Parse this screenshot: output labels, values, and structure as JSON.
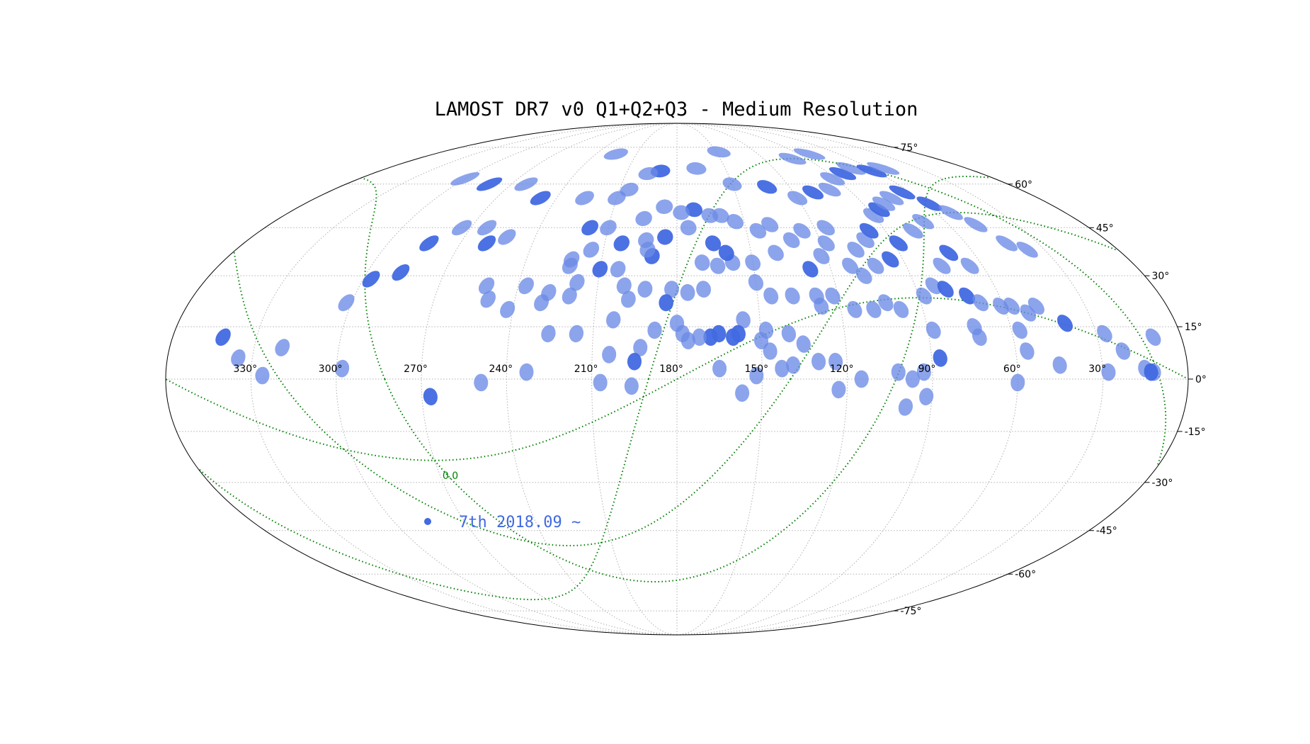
{
  "chart_data": {
    "type": "scatter",
    "projection": "mollweide",
    "title": "LAMOST DR7 v0 Q1+Q2+Q3 - Medium Resolution",
    "longitude_axis": {
      "direction": "decreasing-left-to-right",
      "ticks": [
        "330°",
        "300°",
        "270°",
        "240°",
        "210°",
        "180°",
        "150°",
        "120°",
        "90°",
        "60°",
        "30°"
      ]
    },
    "latitude_axis": {
      "ticks": [
        "75°",
        "60°",
        "45°",
        "30°",
        "15°",
        "0°",
        "-15°",
        "-30°",
        "-45°",
        "-60°",
        "-75°"
      ]
    },
    "grid": true,
    "contour_label": "0.0",
    "legend": {
      "label": "7th 2018.09 ~",
      "placement": "lower-left",
      "color": "#4169e1"
    },
    "colors": {
      "field_light": "#6b8be6",
      "field_dark": "#4169e1",
      "contour": "#008000"
    },
    "fields": [
      {
        "ra": 342,
        "dec": 12,
        "w": 1
      },
      {
        "ra": 335,
        "dec": 6,
        "w": 0
      },
      {
        "ra": 326,
        "dec": 1,
        "w": 0
      },
      {
        "ra": 320,
        "dec": 9,
        "w": 0
      },
      {
        "ra": 302,
        "dec": 22,
        "w": 0
      },
      {
        "ra": 297,
        "dec": 29,
        "w": 1
      },
      {
        "ra": 287,
        "dec": 31,
        "w": 1
      },
      {
        "ra": 283,
        "dec": 40,
        "w": 1
      },
      {
        "ra": 274,
        "dec": 45,
        "w": 0
      },
      {
        "ra": 263,
        "dec": 45,
        "w": 0
      },
      {
        "ra": 252,
        "dec": 42,
        "w": 0
      },
      {
        "ra": 298,
        "dec": 3,
        "w": 0
      },
      {
        "ra": 259,
        "dec": 40,
        "w": 1
      },
      {
        "ra": 252,
        "dec": 27,
        "w": 0
      },
      {
        "ra": 250,
        "dec": 23,
        "w": 0
      },
      {
        "ra": 242,
        "dec": 20,
        "w": 0
      },
      {
        "ra": 237,
        "dec": 27,
        "w": 0
      },
      {
        "ra": 230,
        "dec": 22,
        "w": 0
      },
      {
        "ra": 228,
        "dec": 25,
        "w": 0
      },
      {
        "ra": 222,
        "dec": 33,
        "w": 0
      },
      {
        "ra": 218,
        "dec": 28,
        "w": 0
      },
      {
        "ra": 220,
        "dec": 24,
        "w": 0
      },
      {
        "ra": 210,
        "dec": 32,
        "w": 1
      },
      {
        "ra": 203,
        "dec": 32,
        "w": 0
      },
      {
        "ra": 200,
        "dec": 27,
        "w": 0
      },
      {
        "ra": 193,
        "dec": 41,
        "w": 0
      },
      {
        "ra": 203,
        "dec": 17,
        "w": 0
      },
      {
        "ra": 198,
        "dec": 23,
        "w": 0
      },
      {
        "ra": 192,
        "dec": 26,
        "w": 0
      },
      {
        "ra": 190,
        "dec": 36,
        "w": 1
      },
      {
        "ra": 182,
        "dec": 26,
        "w": 0
      },
      {
        "ra": 176,
        "dec": 25,
        "w": 0
      },
      {
        "ra": 170,
        "dec": 26,
        "w": 0
      },
      {
        "ra": 170,
        "dec": 34,
        "w": 0
      },
      {
        "ra": 164,
        "dec": 33,
        "w": 0
      },
      {
        "ra": 158,
        "dec": 34,
        "w": 0
      },
      {
        "ra": 150,
        "dec": 28,
        "w": 0
      },
      {
        "ra": 145,
        "dec": 24,
        "w": 0
      },
      {
        "ra": 137,
        "dec": 24,
        "w": 0
      },
      {
        "ra": 128,
        "dec": 24,
        "w": 0
      },
      {
        "ra": 127,
        "dec": 21,
        "w": 0
      },
      {
        "ra": 122,
        "dec": 24,
        "w": 0
      },
      {
        "ra": 115,
        "dec": 20,
        "w": 0
      },
      {
        "ra": 108,
        "dec": 20,
        "w": 0
      },
      {
        "ra": 103,
        "dec": 22,
        "w": 0
      },
      {
        "ra": 98,
        "dec": 20,
        "w": 0
      },
      {
        "ra": 88,
        "dec": 24,
        "w": 0
      },
      {
        "ra": 83,
        "dec": 27,
        "w": 0
      },
      {
        "ra": 79,
        "dec": 26,
        "w": 1
      },
      {
        "ra": 72,
        "dec": 24,
        "w": 1
      },
      {
        "ra": 68,
        "dec": 22,
        "w": 0
      },
      {
        "ra": 61,
        "dec": 21,
        "w": 0
      },
      {
        "ra": 57,
        "dec": 21,
        "w": 0
      },
      {
        "ra": 52,
        "dec": 19,
        "w": 0
      },
      {
        "ra": 48,
        "dec": 21,
        "w": 0
      },
      {
        "ra": 40,
        "dec": 16,
        "w": 1
      },
      {
        "ra": 27,
        "dec": 13,
        "w": 0
      },
      {
        "ra": 22,
        "dec": 8,
        "w": 0
      },
      {
        "ra": 10,
        "dec": 12,
        "w": 0
      },
      {
        "ra": 15,
        "dec": 3,
        "w": 0
      },
      {
        "ra": 12,
        "dec": 2,
        "w": 0
      },
      {
        "ra": 13,
        "dec": 2,
        "w": 1
      },
      {
        "ra": 28,
        "dec": 2,
        "w": 0
      },
      {
        "ra": 45,
        "dec": 4,
        "w": 0
      },
      {
        "ra": 56,
        "dec": 8,
        "w": 0
      },
      {
        "ra": 57,
        "dec": 14,
        "w": 0
      },
      {
        "ra": 72,
        "dec": 12,
        "w": 0
      },
      {
        "ra": 73,
        "dec": 15,
        "w": 0
      },
      {
        "ra": 88,
        "dec": 14,
        "w": 0
      },
      {
        "ra": 87,
        "dec": 6,
        "w": 1
      },
      {
        "ra": 93,
        "dec": 2,
        "w": 0
      },
      {
        "ra": 97,
        "dec": 0,
        "w": 0
      },
      {
        "ra": 102,
        "dec": 2,
        "w": 0
      },
      {
        "ra": 99,
        "dec": -8,
        "w": 0
      },
      {
        "ra": 92,
        "dec": -5,
        "w": 0
      },
      {
        "ra": 60,
        "dec": -1,
        "w": 0
      },
      {
        "ra": 124,
        "dec": 5,
        "w": 0
      },
      {
        "ra": 130,
        "dec": 5,
        "w": 0
      },
      {
        "ra": 135,
        "dec": 10,
        "w": 0
      },
      {
        "ra": 140,
        "dec": 13,
        "w": 0
      },
      {
        "ra": 148,
        "dec": 14,
        "w": 0
      },
      {
        "ra": 156,
        "dec": 17,
        "w": 0
      },
      {
        "ra": 158,
        "dec": 13,
        "w": 1
      },
      {
        "ra": 160,
        "dec": 12,
        "w": 1
      },
      {
        "ra": 165,
        "dec": 13,
        "w": 1
      },
      {
        "ra": 168,
        "dec": 12,
        "w": 1
      },
      {
        "ra": 172,
        "dec": 12,
        "w": 0
      },
      {
        "ra": 176,
        "dec": 11,
        "w": 0
      },
      {
        "ra": 178,
        "dec": 13,
        "w": 0
      },
      {
        "ra": 180,
        "dec": 16,
        "w": 0
      },
      {
        "ra": 184,
        "dec": 22,
        "w": 1
      },
      {
        "ra": 188,
        "dec": 14,
        "w": 0
      },
      {
        "ra": 193,
        "dec": 9,
        "w": 0
      },
      {
        "ra": 204,
        "dec": 7,
        "w": 0
      },
      {
        "ra": 216,
        "dec": 13,
        "w": 0
      },
      {
        "ra": 226,
        "dec": 13,
        "w": 0
      },
      {
        "ra": 165,
        "dec": 3,
        "w": 0
      },
      {
        "ra": 152,
        "dec": 1,
        "w": 0
      },
      {
        "ra": 157,
        "dec": -4,
        "w": 0
      },
      {
        "ra": 195,
        "dec": 5,
        "w": 1
      },
      {
        "ra": 196,
        "dec": -2,
        "w": 0
      },
      {
        "ra": 207,
        "dec": -1,
        "w": 0
      },
      {
        "ra": 233,
        "dec": 2,
        "w": 0
      },
      {
        "ra": 249,
        "dec": -1,
        "w": 0
      },
      {
        "ra": 267,
        "dec": -5,
        "w": 1
      },
      {
        "ra": 115,
        "dec": 0,
        "w": 0
      },
      {
        "ra": 123,
        "dec": -3,
        "w": 0
      },
      {
        "ra": 139,
        "dec": 4,
        "w": 0
      },
      {
        "ra": 143,
        "dec": 3,
        "w": 0
      },
      {
        "ra": 147,
        "dec": 8,
        "w": 0
      },
      {
        "ra": 150,
        "dec": 11,
        "w": 0
      },
      {
        "ra": 112,
        "dec": 33,
        "w": 0
      },
      {
        "ra": 107,
        "dec": 38,
        "w": 0
      },
      {
        "ra": 101,
        "dec": 41,
        "w": 0
      },
      {
        "ra": 97,
        "dec": 44,
        "w": 1
      },
      {
        "ra": 90,
        "dec": 49,
        "w": 0
      },
      {
        "ra": 85,
        "dec": 51,
        "w": 1
      },
      {
        "ra": 80,
        "dec": 53,
        "w": 0
      },
      {
        "ra": 73,
        "dec": 55,
        "w": 0
      },
      {
        "ra": 64,
        "dec": 57,
        "w": 1
      },
      {
        "ra": 58,
        "dec": 53,
        "w": 1
      },
      {
        "ra": 53,
        "dec": 50,
        "w": 0
      },
      {
        "ra": 48,
        "dec": 46,
        "w": 0
      },
      {
        "ra": 43,
        "dec": 40,
        "w": 0
      },
      {
        "ra": 37,
        "dec": 38,
        "w": 0
      },
      {
        "ra": 115,
        "dec": 45,
        "w": 0
      },
      {
        "ra": 126,
        "dec": 44,
        "w": 0
      },
      {
        "ra": 132,
        "dec": 41,
        "w": 0
      },
      {
        "ra": 139,
        "dec": 46,
        "w": 0
      },
      {
        "ra": 145,
        "dec": 44,
        "w": 0
      },
      {
        "ra": 154,
        "dec": 47,
        "w": 0
      },
      {
        "ra": 160,
        "dec": 49,
        "w": 0
      },
      {
        "ra": 165,
        "dec": 49,
        "w": 0
      },
      {
        "ra": 172,
        "dec": 51,
        "w": 1
      },
      {
        "ra": 178,
        "dec": 50,
        "w": 0
      },
      {
        "ra": 186,
        "dec": 52,
        "w": 0
      },
      {
        "ra": 195,
        "dec": 48,
        "w": 0
      },
      {
        "ra": 218,
        "dec": 45,
        "w": 1
      },
      {
        "ra": 226,
        "dec": 55,
        "w": 0
      },
      {
        "ra": 248,
        "dec": 55,
        "w": 1
      },
      {
        "ra": 262,
        "dec": 60,
        "w": 0
      },
      {
        "ra": 282,
        "dec": 60,
        "w": 1
      },
      {
        "ra": 300,
        "dec": 62,
        "w": 0
      },
      {
        "ra": 150,
        "dec": 60,
        "w": 0
      },
      {
        "ra": 132,
        "dec": 59,
        "w": 1
      },
      {
        "ra": 120,
        "dec": 55,
        "w": 0
      },
      {
        "ra": 110,
        "dec": 57,
        "w": 1
      },
      {
        "ra": 100,
        "dec": 58,
        "w": 0
      },
      {
        "ra": 92,
        "dec": 62,
        "w": 0
      },
      {
        "ra": 82,
        "dec": 64,
        "w": 1
      },
      {
        "ra": 72,
        "dec": 66,
        "w": 0
      },
      {
        "ra": 62,
        "dec": 65,
        "w": 1
      },
      {
        "ra": 52,
        "dec": 66,
        "w": 0
      },
      {
        "ra": 168,
        "dec": 66,
        "w": 0
      },
      {
        "ra": 148,
        "dec": 73,
        "w": 0
      },
      {
        "ra": 100,
        "dec": 70,
        "w": 0
      },
      {
        "ra": 82,
        "dec": 72,
        "w": 0
      },
      {
        "ra": 225,
        "dec": 72,
        "w": 0
      },
      {
        "ra": 190,
        "dec": 65,
        "w": 1
      },
      {
        "ra": 197,
        "dec": 64,
        "w": 0
      },
      {
        "ra": 205,
        "dec": 58,
        "w": 0
      },
      {
        "ra": 210,
        "dec": 55,
        "w": 0
      },
      {
        "ra": 128,
        "dec": 32,
        "w": 1
      },
      {
        "ra": 122,
        "dec": 36,
        "w": 0
      },
      {
        "ra": 118,
        "dec": 40,
        "w": 0
      },
      {
        "ra": 140,
        "dec": 37,
        "w": 0
      },
      {
        "ra": 150,
        "dec": 34,
        "w": 0
      },
      {
        "ra": 160,
        "dec": 37,
        "w": 1
      },
      {
        "ra": 165,
        "dec": 40,
        "w": 1
      },
      {
        "ra": 175,
        "dec": 45,
        "w": 0
      },
      {
        "ra": 185,
        "dec": 42,
        "w": 1
      },
      {
        "ra": 192,
        "dec": 38,
        "w": 0
      },
      {
        "ra": 203,
        "dec": 40,
        "w": 1
      },
      {
        "ra": 210,
        "dec": 45,
        "w": 0
      },
      {
        "ra": 215,
        "dec": 38,
        "w": 0
      },
      {
        "ra": 222,
        "dec": 35,
        "w": 0
      },
      {
        "ra": 88,
        "dec": 40,
        "w": 1
      },
      {
        "ra": 78,
        "dec": 44,
        "w": 0
      },
      {
        "ra": 70,
        "dec": 47,
        "w": 0
      },
      {
        "ra": 65,
        "dec": 33,
        "w": 0
      },
      {
        "ra": 70,
        "dec": 37,
        "w": 1
      },
      {
        "ra": 76,
        "dec": 33,
        "w": 0
      },
      {
        "ra": 95,
        "dec": 35,
        "w": 1
      },
      {
        "ra": 102,
        "dec": 33,
        "w": 0
      },
      {
        "ra": 108,
        "dec": 30,
        "w": 0
      }
    ]
  }
}
